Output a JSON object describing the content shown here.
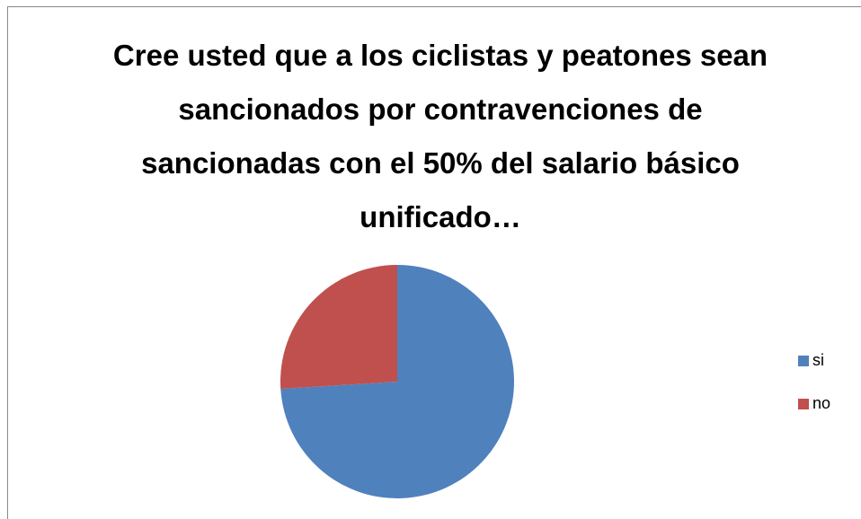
{
  "chart_data": {
    "type": "pie",
    "title": "Cree usted que a los ciclistas y peatones sean sancionados por contravenciones de sancionadas con el 50% del salario básico unificado…",
    "categories": [
      "si",
      "no"
    ],
    "values": [
      74,
      26
    ],
    "colors": [
      "#4f81bd",
      "#c0504d"
    ],
    "legend": "right"
  }
}
